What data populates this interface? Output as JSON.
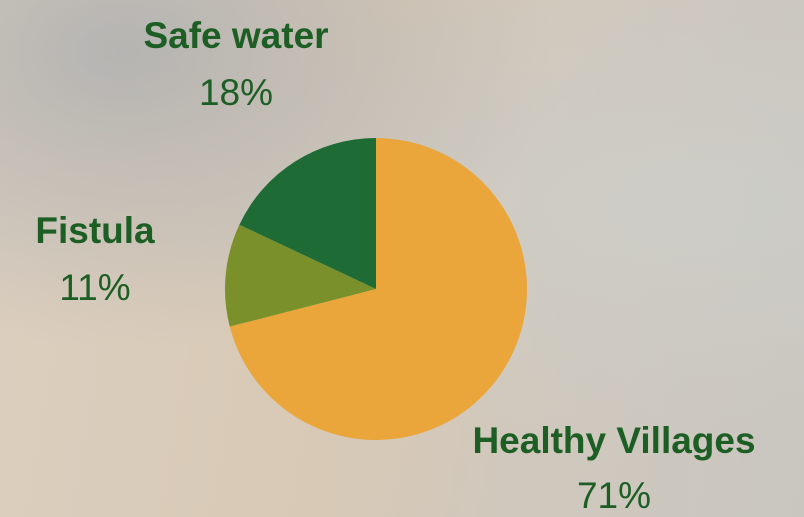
{
  "chart_data": {
    "type": "pie",
    "categories": [
      "Healthy Villages",
      "Fistula",
      "Safe water"
    ],
    "values": [
      71,
      11,
      18
    ],
    "value_labels": [
      "71%",
      "11%",
      "18%"
    ],
    "colors": [
      "#eaa63a",
      "#7a902b",
      "#1e6b36"
    ]
  }
}
